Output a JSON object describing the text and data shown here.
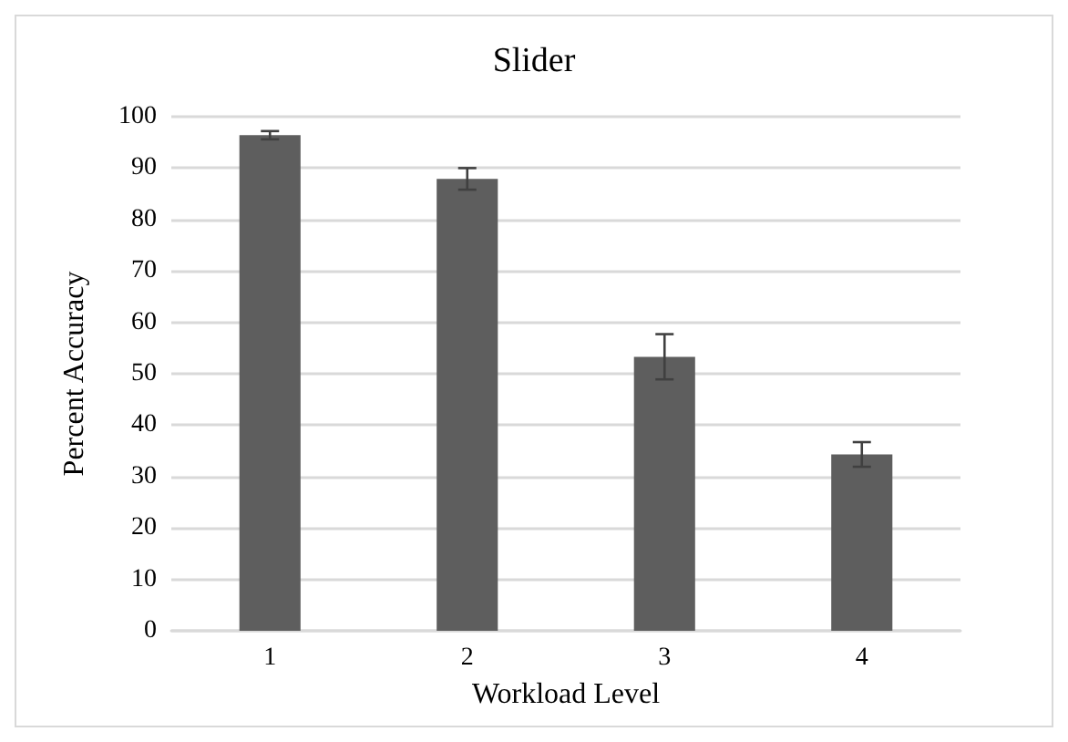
{
  "chart_data": {
    "type": "bar",
    "title": "Slider",
    "xlabel": "Workload Level",
    "ylabel": "Percent Accuracy",
    "categories": [
      "1",
      "2",
      "3",
      "4"
    ],
    "values": [
      96.4,
      87.9,
      53.3,
      34.3
    ],
    "errors": [
      0.8,
      2.1,
      4.4,
      2.4
    ],
    "color": "#5e5e5e",
    "ylim": [
      0,
      100
    ],
    "yticks": [
      0,
      10,
      20,
      30,
      40,
      50,
      60,
      70,
      80,
      90,
      100
    ],
    "grid": "y"
  }
}
